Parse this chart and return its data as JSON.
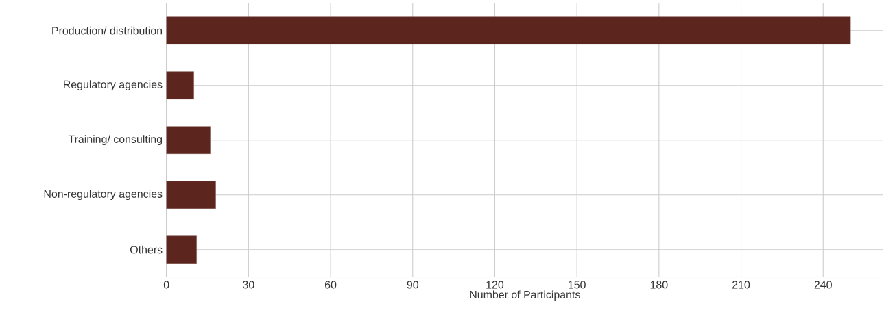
{
  "chart_data": {
    "type": "bar",
    "orientation": "horizontal",
    "xlabel": "Number of Participants",
    "categories": [
      "Production/ distribution",
      "Regulatory agencies",
      "Training/ consulting",
      "Non-regulatory agencies",
      "Others"
    ],
    "values": [
      250,
      10,
      16,
      18,
      11
    ],
    "color": "#5c261f",
    "xlim": [
      0,
      262
    ],
    "xticks": [
      0,
      30,
      60,
      90,
      120,
      150,
      180,
      210,
      240
    ],
    "grid": true
  }
}
